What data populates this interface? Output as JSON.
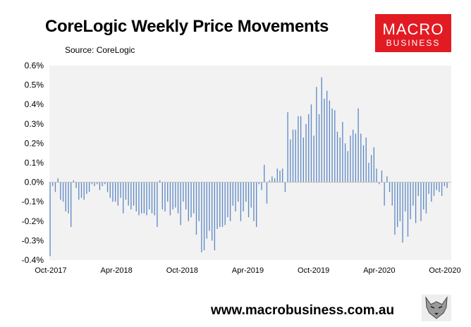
{
  "title": "CoreLogic Weekly Price Movements",
  "source": "Source: CoreLogic",
  "logo": {
    "line1": "MACRO",
    "line2": "BUSINESS"
  },
  "footer": {
    "url": "www.macrobusiness.com.au"
  },
  "colors": {
    "bar": "#5b87c4",
    "plot_bg": "#f2f2f2",
    "logo_bg": "#e21b23"
  },
  "chart_data": {
    "type": "bar",
    "title": "CoreLogic Weekly Price Movements",
    "subtitle": "Source: CoreLogic",
    "xlabel": "",
    "ylabel": "",
    "ylim": [
      -0.4,
      0.6
    ],
    "yticks": [
      "0.6%",
      "0.5%",
      "0.4%",
      "0.3%",
      "0.2%",
      "0.1%",
      "0.0%",
      "-0.1%",
      "-0.2%",
      "-0.3%",
      "-0.4%"
    ],
    "xticks": [
      "Oct-2017",
      "Apr-2018",
      "Oct-2018",
      "Apr-2019",
      "Oct-2019",
      "Apr-2020",
      "Oct-2020"
    ],
    "grid": false,
    "legend": "none",
    "x": "weekly, Oct-2017 to Oct-2020",
    "values": [
      -0.38,
      -0.02,
      -0.05,
      0.02,
      -0.09,
      -0.1,
      -0.15,
      -0.16,
      -0.23,
      0.01,
      -0.03,
      -0.09,
      -0.08,
      -0.09,
      -0.06,
      -0.05,
      -0.01,
      -0.02,
      -0.01,
      -0.04,
      -0.02,
      -0.01,
      -0.05,
      -0.08,
      -0.1,
      -0.1,
      -0.12,
      -0.08,
      -0.16,
      -0.09,
      -0.12,
      -0.14,
      -0.12,
      -0.15,
      -0.17,
      -0.16,
      -0.16,
      -0.17,
      -0.14,
      -0.16,
      -0.17,
      -0.23,
      0.01,
      -0.14,
      -0.15,
      -0.1,
      -0.17,
      -0.14,
      -0.13,
      -0.16,
      -0.22,
      -0.1,
      -0.14,
      -0.2,
      -0.18,
      -0.16,
      -0.27,
      -0.2,
      -0.36,
      -0.35,
      -0.29,
      -0.25,
      -0.3,
      -0.35,
      -0.24,
      -0.23,
      -0.23,
      -0.22,
      -0.18,
      -0.2,
      -0.12,
      -0.15,
      -0.1,
      -0.2,
      -0.15,
      -0.1,
      -0.18,
      -0.13,
      -0.2,
      -0.23,
      -0.01,
      -0.04,
      0.09,
      -0.11,
      0.01,
      0.03,
      0.02,
      0.07,
      0.06,
      0.07,
      -0.05,
      0.36,
      0.22,
      0.27,
      0.27,
      0.34,
      0.34,
      0.23,
      0.3,
      0.35,
      0.4,
      0.24,
      0.49,
      0.35,
      0.54,
      0.43,
      0.47,
      0.42,
      0.38,
      0.37,
      0.26,
      0.23,
      0.31,
      0.2,
      0.16,
      0.24,
      0.27,
      0.25,
      0.38,
      0.25,
      0.19,
      0.23,
      0.1,
      0.14,
      0.18,
      0.07,
      -0.01,
      0.06,
      -0.12,
      0.03,
      -0.05,
      -0.12,
      -0.27,
      -0.23,
      -0.2,
      -0.31,
      -0.15,
      -0.28,
      -0.19,
      -0.12,
      -0.21,
      -0.07,
      -0.2,
      -0.14,
      -0.16,
      -0.06,
      -0.1,
      -0.07,
      -0.04,
      -0.05,
      -0.07,
      -0.02,
      -0.03
    ]
  }
}
